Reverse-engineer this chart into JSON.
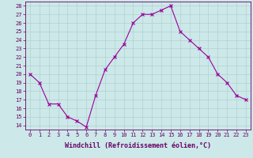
{
  "x": [
    0,
    1,
    2,
    3,
    4,
    5,
    6,
    7,
    8,
    9,
    10,
    11,
    12,
    13,
    14,
    15,
    16,
    17,
    18,
    19,
    20,
    21,
    22,
    23
  ],
  "y": [
    20,
    19,
    16.5,
    16.5,
    15,
    14.5,
    13.8,
    17.5,
    20.5,
    22,
    23.5,
    26,
    27,
    27,
    27.5,
    28,
    25,
    24,
    23,
    22,
    20,
    19,
    17.5,
    17
  ],
  "line_color": "#990099",
  "marker": "x",
  "marker_size": 3,
  "marker_linewidth": 0.8,
  "line_width": 0.8,
  "bg_color": "#cce8e8",
  "grid_color": "#aacccc",
  "xlabel": "Windchill (Refroidissement éolien,°C)",
  "xlabel_color": "#660066",
  "xlim": [
    -0.5,
    23.5
  ],
  "ylim": [
    13.5,
    28.5
  ],
  "ytick_labels": [
    "14",
    "15",
    "16",
    "17",
    "18",
    "19",
    "20",
    "21",
    "22",
    "23",
    "24",
    "25",
    "26",
    "27",
    "28"
  ],
  "ytick_vals": [
    14,
    15,
    16,
    17,
    18,
    19,
    20,
    21,
    22,
    23,
    24,
    25,
    26,
    27,
    28
  ],
  "xtick_vals": [
    0,
    1,
    2,
    3,
    4,
    5,
    6,
    7,
    8,
    9,
    10,
    11,
    12,
    13,
    14,
    15,
    16,
    17,
    18,
    19,
    20,
    21,
    22,
    23
  ],
  "xtick_labels": [
    "0",
    "1",
    "2",
    "3",
    "4",
    "5",
    "6",
    "7",
    "8",
    "9",
    "10",
    "11",
    "12",
    "13",
    "14",
    "15",
    "16",
    "17",
    "18",
    "19",
    "20",
    "21",
    "22",
    "23"
  ],
  "tick_fontsize": 5,
  "xlabel_fontsize": 6,
  "tick_color": "#660066",
  "spine_color": "#660066",
  "axis_bg_color": "#cce8e8"
}
